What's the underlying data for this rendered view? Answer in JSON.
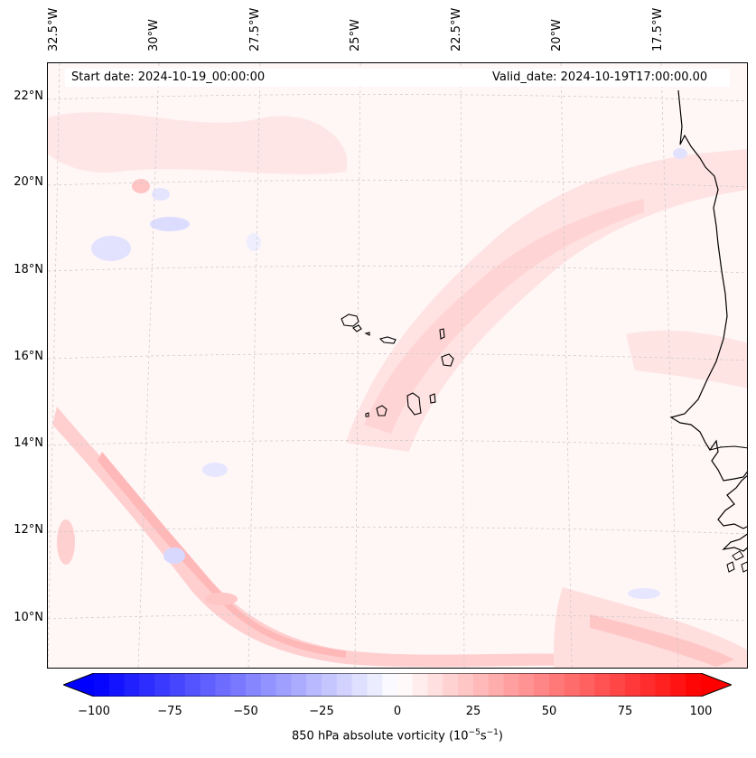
{
  "map": {
    "start_date": "Start date: 2024-10-19_00:00:00",
    "valid_date": "Valid_date: 2024-10-19T17:00:00.00",
    "longitude_labels": [
      "32.5°W",
      "30°W",
      "27.5°W",
      "25°W",
      "22.5°W",
      "20°W",
      "17.5°W"
    ],
    "latitude_labels": [
      "22°N",
      "20°N",
      "18°N",
      "16°N",
      "14°N",
      "12°N",
      "10°N"
    ],
    "field": "850 hPa absolute vorticity",
    "islands": "Cabo Verde",
    "coastline": "West Africa"
  },
  "colorbar": {
    "ticks": [
      "−100",
      "−75",
      "−50",
      "−25",
      "0",
      "25",
      "50",
      "75",
      "100"
    ],
    "label": "850 hPa absolute vorticity (10",
    "unit_exp1": "−5",
    "unit_mid": "s",
    "unit_exp2": "−1",
    "label_end": ")",
    "min_color": "#0000ff",
    "mid_color": "#ffffff",
    "max_color": "#ff0000",
    "levels": 40
  }
}
